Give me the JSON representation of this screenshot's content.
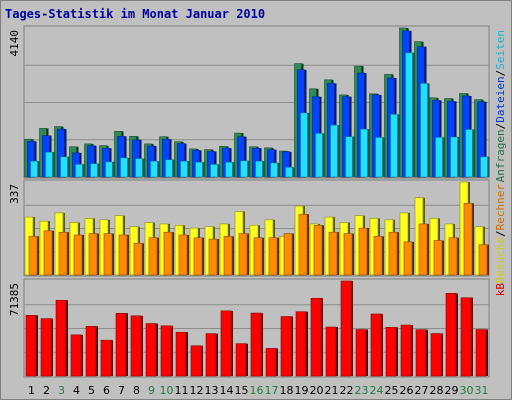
{
  "colors": {
    "page_bg": "#c0c0c0",
    "frame": "#808080",
    "title": "#0000a0",
    "grid": "#8c8c8c",
    "hits": "#2e8b57",
    "files": "#0044ff",
    "pages": "#20e0ff",
    "visits": "#ffff20",
    "sites": "#ff8c00",
    "kbytes": "#ff0000",
    "weekend": "#1f7a3f",
    "weekday": "#000000"
  },
  "chart_data": {
    "type": "bar",
    "title": "Tages-Statistik im Monat Januar 2010",
    "categories": [
      "1",
      "2",
      "3",
      "4",
      "5",
      "6",
      "7",
      "8",
      "9",
      "10",
      "11",
      "12",
      "13",
      "14",
      "15",
      "16",
      "17",
      "18",
      "19",
      "20",
      "21",
      "22",
      "23",
      "24",
      "25",
      "26",
      "27",
      "28",
      "29",
      "30",
      "31"
    ],
    "weekend_days": [
      "3",
      "9",
      "10",
      "16",
      "17",
      "23",
      "24",
      "30",
      "31"
    ],
    "panels": [
      {
        "id": "requests",
        "ymax_label": "4140",
        "ylim": [
          0,
          4140
        ],
        "right_label": [
          "Anfragen",
          "/",
          "Dateien",
          "/",
          "Seiten"
        ],
        "series": [
          {
            "name": "Anfragen",
            "color_key": "hits",
            "values": [
              1050,
              1350,
              1400,
              840,
              920,
              870,
              1270,
              1130,
              920,
              1120,
              980,
              780,
              760,
              850,
              1220,
              840,
              810,
              720,
              3150,
              2450,
              2700,
              2280,
              3080,
              2310,
              2850,
              4140,
              3760,
              2200,
              2180,
              2320,
              2150
            ]
          },
          {
            "name": "Dateien",
            "color_key": "files",
            "values": [
              990,
              1150,
              1330,
              670,
              870,
              800,
              1130,
              1030,
              860,
              1050,
              930,
              740,
              710,
              800,
              1120,
              800,
              760,
              700,
              2980,
              2230,
              2600,
              2230,
              2890,
              2280,
              2750,
              4060,
              3620,
              2130,
              2100,
              2250,
              2090
            ]
          },
          {
            "name": "Seiten",
            "color_key": "pages",
            "values": [
              440,
              690,
              560,
              350,
              370,
              420,
              530,
              510,
              440,
              480,
              440,
              410,
              350,
              410,
              450,
              440,
              390,
              270,
              1780,
              1210,
              1440,
              1120,
              1330,
              1100,
              1740,
              3450,
              2600,
              1100,
              1110,
              1320,
              560
            ]
          }
        ]
      },
      {
        "id": "visits",
        "ymax_label": "337",
        "ylim": [
          0,
          337
        ],
        "right_label": [
          "Besuche",
          "/",
          "Rechner"
        ],
        "series": [
          {
            "name": "Besuche",
            "color_key": "visits",
            "values": [
              210,
              195,
              225,
              190,
              205,
              200,
              215,
              175,
              190,
              185,
              180,
              170,
              175,
              185,
              230,
              180,
              200,
              140,
              250,
              185,
              210,
              190,
              215,
              205,
              200,
              225,
              280,
              205,
              185,
              337,
              175
            ]
          },
          {
            "name": "Rechner",
            "color_key": "sites",
            "values": [
              140,
              160,
              155,
              145,
              150,
              150,
              145,
              115,
              135,
              155,
              145,
              135,
              130,
              140,
              150,
              135,
              135,
              150,
              220,
              180,
              155,
              150,
              170,
              140,
              155,
              120,
              185,
              125,
              135,
              260,
              110
            ]
          }
        ]
      },
      {
        "id": "kbytes",
        "ymax_label": "71385",
        "ylim": [
          0,
          71385
        ],
        "right_label": [
          "kB"
        ],
        "series": [
          {
            "name": "kB",
            "color_key": "kbytes",
            "values": [
              45600,
              43100,
              56900,
              30900,
              37300,
              26900,
              47100,
              45200,
              39400,
              37700,
              32900,
              22700,
              31800,
              48900,
              24300,
              47300,
              20700,
              44700,
              48300,
              58400,
              36800,
              71385,
              34900,
              46600,
              36600,
              38300,
              34800,
              31900,
              62100,
              58800,
              34900
            ]
          }
        ]
      }
    ]
  }
}
